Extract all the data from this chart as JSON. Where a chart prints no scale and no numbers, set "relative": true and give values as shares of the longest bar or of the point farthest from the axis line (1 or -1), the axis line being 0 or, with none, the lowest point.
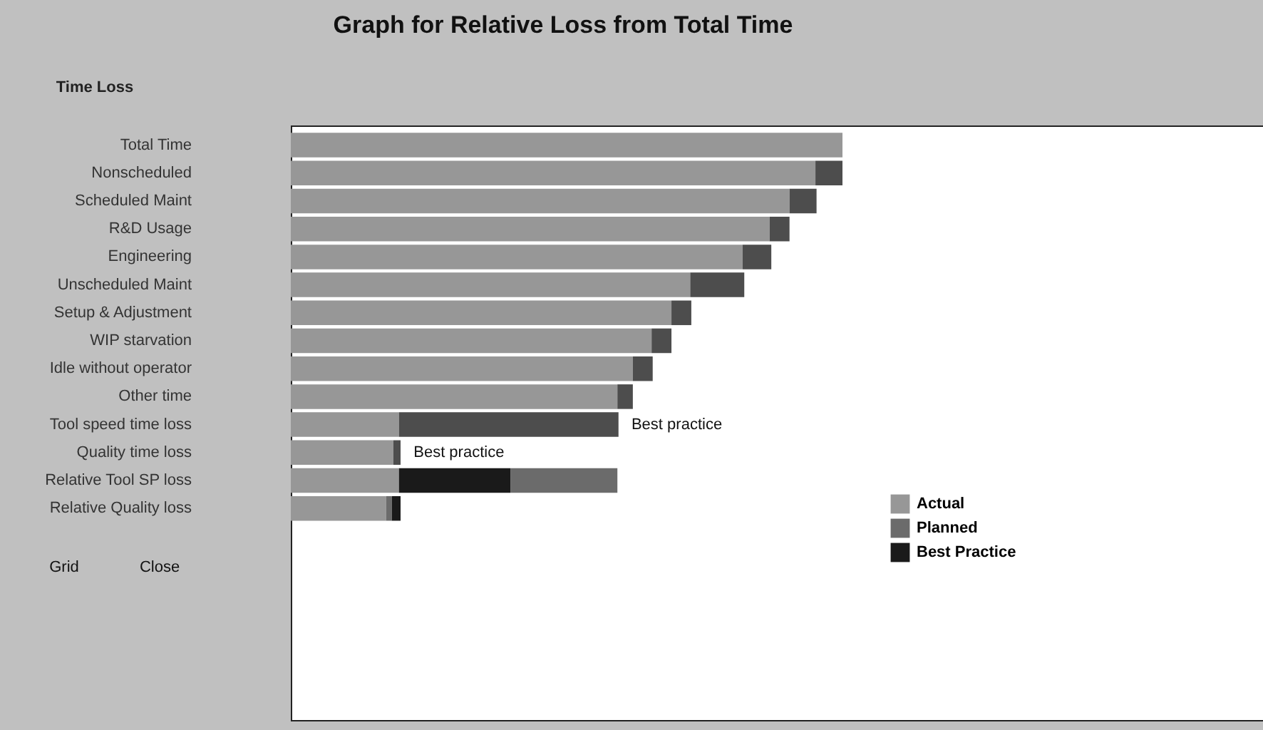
{
  "chart_data": {
    "type": "bar",
    "orientation": "horizontal",
    "stacked": true,
    "relative": true,
    "title": "Graph for Relative Loss from Total Time",
    "ylabel": "Time Loss",
    "categories": [
      "Total Time",
      "Nonscheduled",
      "Scheduled Maint",
      "R&D Usage",
      "Engineering",
      "Unscheduled Maint",
      "Setup & Adjustment",
      "WIP starvation",
      "Idle without operator",
      "Other time",
      "Tool speed time loss",
      "Quality time loss",
      "Relative Tool SP loss",
      "Relative Quality loss"
    ],
    "series": [
      {
        "color": "#979797",
        "values": [
          1.0,
          0.951,
          0.904,
          0.868,
          0.819,
          0.724,
          0.69,
          0.654,
          0.62,
          0.592,
          0.196,
          0.186,
          null,
          null
        ]
      },
      {
        "color": "#4d4d4d",
        "values": [
          null,
          0.049,
          0.049,
          0.036,
          0.052,
          0.098,
          0.036,
          0.036,
          0.036,
          0.028,
          0.398,
          0.013,
          null,
          null
        ]
      },
      {
        "name": "Actual",
        "color": "#979797",
        "values": [
          null,
          null,
          null,
          null,
          null,
          null,
          null,
          null,
          null,
          null,
          null,
          null,
          0.196,
          0.173
        ]
      },
      {
        "name": "Planned",
        "color": "#6b6b6b",
        "values": [
          null,
          null,
          null,
          null,
          null,
          null,
          null,
          null,
          null,
          null,
          null,
          null,
          null,
          0.01
        ]
      },
      {
        "name": "Best Practice",
        "color": "#1a1a1a",
        "values": [
          null,
          null,
          null,
          null,
          null,
          null,
          null,
          null,
          null,
          null,
          null,
          null,
          0.202,
          0.016
        ]
      },
      {
        "color": "#6b6b6b",
        "values": [
          null,
          null,
          null,
          null,
          null,
          null,
          null,
          null,
          null,
          null,
          null,
          null,
          0.194,
          null
        ]
      }
    ],
    "annotations": [
      {
        "text": "Best practice",
        "x": 0.602,
        "y": "Tool speed time loss"
      },
      {
        "text": "Best practice",
        "x": 0.207,
        "y": "Quality time loss"
      },
      "Grid",
      "Close"
    ],
    "legend": "right"
  }
}
